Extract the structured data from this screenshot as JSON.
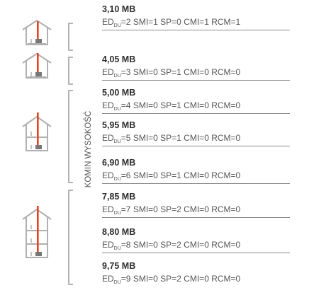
{
  "vertical_label": "KOMIN WYSOKOŚĆ",
  "entries": [
    {
      "title": "3,10 MB",
      "ed_sub": "DU",
      "ed": "2",
      "smi": "1",
      "sp": "0",
      "cmi": "1",
      "rcm": "1"
    },
    {
      "title": "4,05 MB",
      "ed_sub": "DU",
      "ed": "3",
      "smi": "0",
      "sp": "1",
      "cmi": "0",
      "rcm": "0"
    },
    {
      "title": "5,00 MB",
      "ed_sub": "DU",
      "ed": "4",
      "smi": "0",
      "sp": "1",
      "cmi": "0",
      "rcm": "0"
    },
    {
      "title": "5,95 MB",
      "ed_sub": "DU",
      "ed": "5",
      "smi": "0",
      "sp": "1",
      "cmi": "0",
      "rcm": "0"
    },
    {
      "title": "6,90 MB",
      "ed_sub": "DU",
      "ed": "6",
      "smi": "0",
      "sp": "1",
      "cmi": "0",
      "rcm": "0"
    },
    {
      "title": "7,85 MB",
      "ed_sub": "DU",
      "ed": "7",
      "smi": "0",
      "sp": "2",
      "cmi": "0",
      "rcm": "0"
    },
    {
      "title": "8,80 MB",
      "ed_sub": "DU",
      "ed": "8",
      "smi": "0",
      "sp": "2",
      "cmi": "0",
      "rcm": "0"
    },
    {
      "title": "9,75 MB",
      "ed_sub": "DU",
      "ed": "9",
      "smi": "0",
      "sp": "2",
      "cmi": "0",
      "rcm": "0"
    }
  ],
  "colors": {
    "chimney": "#e8421c",
    "house": "#b0b0b0",
    "text": "#555555"
  }
}
